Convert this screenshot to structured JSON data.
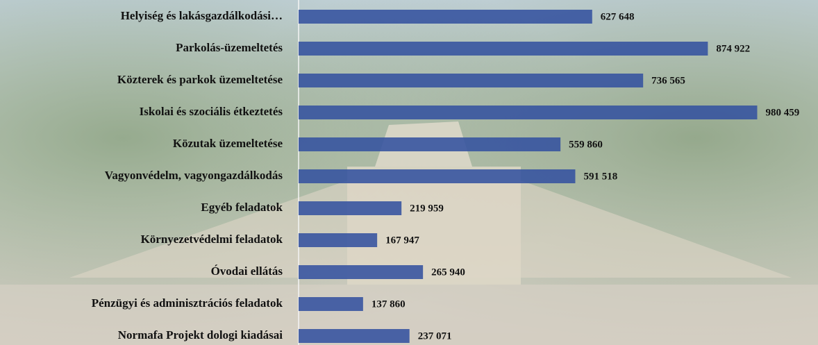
{
  "chart_data": {
    "type": "hbar",
    "categories": [
      "Helyiség és lakásgazdálkodási…",
      "Parkolás-üzemeltetés",
      "Közterek és parkok  üzemeltetése",
      "Iskolai és szociális étkeztetés",
      "Közutak üzemeltetése",
      "Vagyonvédelm, vagyongazdálkodás",
      "Egyéb feladatok",
      "Környezetvédelmi feladatok",
      "Óvodai ellátás",
      "Pénzügyi és adminisztrációs feladatok",
      "Normafa Projekt dologi kiadásai"
    ],
    "values": [
      627648,
      874922,
      736565,
      980459,
      559860,
      591518,
      219959,
      167947,
      265940,
      137860,
      237071
    ],
    "value_labels": [
      "627 648",
      "874 922",
      "736 565",
      "980 459",
      "559 860",
      "591 518",
      "219 959",
      "167 947",
      "265 940",
      "137 860",
      "237 071"
    ],
    "color": "#34529f",
    "xlim": [
      0,
      1100000
    ]
  }
}
